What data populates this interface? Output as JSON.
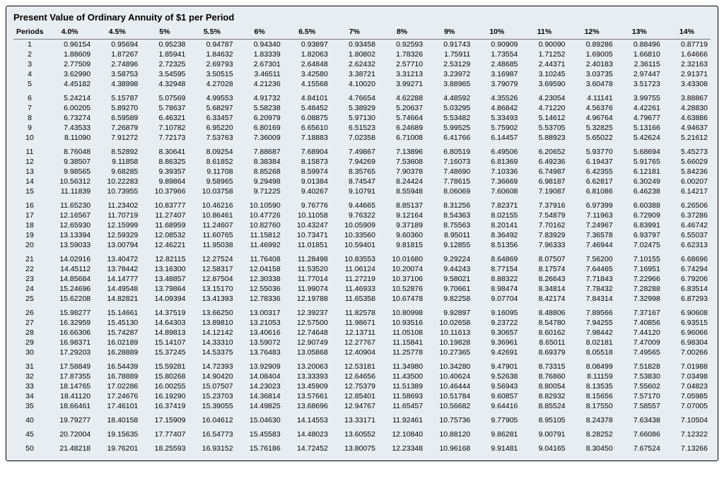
{
  "table": {
    "title": "Present Value of Ordinary Annuity of $1 per Period",
    "periods_label": "Periods",
    "rates_pct": [
      "4.0%",
      "4.5%",
      "5%",
      "5.5%",
      "6%",
      "6.5%",
      "7%",
      "8%",
      "9%",
      "10%",
      "11%",
      "12%",
      "13%",
      "14%"
    ],
    "groups": [
      {
        "rows": [
          {
            "period": 1,
            "values": [
              "0.96154",
              "0.95694",
              "0.95238",
              "0.94787",
              "0.94340",
              "0.93897",
              "0.93458",
              "0.92593",
              "0.91743",
              "0.90909",
              "0.90090",
              "0.89286",
              "0.88496",
              "0.87719"
            ]
          },
          {
            "period": 2,
            "values": [
              "1.88609",
              "1.87267",
              "1.85941",
              "1.84632",
              "1.83339",
              "1.82063",
              "1.80802",
              "1.78326",
              "1.75911",
              "1.73554",
              "1.71252",
              "1.69005",
              "1.66810",
              "1.64666"
            ]
          },
          {
            "period": 3,
            "values": [
              "2.77509",
              "2.74896",
              "2.72325",
              "2.69793",
              "2.67301",
              "2.64848",
              "2.62432",
              "2.57710",
              "2.53129",
              "2.48685",
              "2.44371",
              "2.40183",
              "2.36115",
              "2.32163"
            ]
          },
          {
            "period": 4,
            "values": [
              "3.62990",
              "3.58753",
              "3.54595",
              "3.50515",
              "3.46511",
              "3.42580",
              "3.38721",
              "3.31213",
              "3.23972",
              "3.16987",
              "3.10245",
              "3.03735",
              "2.97447",
              "2.91371"
            ]
          },
          {
            "period": 5,
            "values": [
              "4.45182",
              "4.38998",
              "4.32948",
              "4.27028",
              "4.21236",
              "4.15568",
              "4.10020",
              "3.99271",
              "3.88965",
              "3.79079",
              "3.69590",
              "3.60478",
              "3.51723",
              "3.43308"
            ]
          }
        ]
      },
      {
        "rows": [
          {
            "period": 6,
            "values": [
              "5.24214",
              "5.15787",
              "5.07569",
              "4.99553",
              "4.91732",
              "4.84101",
              "4.76654",
              "4.62288",
              "4.48592",
              "4.35526",
              "4.23054",
              "4.11141",
              "3.99755",
              "3.88867"
            ]
          },
          {
            "period": 7,
            "values": [
              "6.00205",
              "5.89270",
              "5.78637",
              "5.68297",
              "5.58238",
              "5.48452",
              "5.38929",
              "5.20637",
              "5.03295",
              "4.86842",
              "4.71220",
              "4.56376",
              "4.42261",
              "4.28830"
            ]
          },
          {
            "period": 8,
            "values": [
              "6.73274",
              "6.59589",
              "6.46321",
              "6.33457",
              "6.20979",
              "6.08875",
              "5.97130",
              "5.74664",
              "5.53482",
              "5.33493",
              "5.14612",
              "4.96764",
              "4.79677",
              "4.63886"
            ]
          },
          {
            "period": 9,
            "values": [
              "7.43533",
              "7.26879",
              "7.10782",
              "6.95220",
              "6.80169",
              "6.65610",
              "6.51523",
              "6.24689",
              "5.99525",
              "5.75902",
              "5.53705",
              "5.32825",
              "5.13166",
              "4.94637"
            ]
          },
          {
            "period": 10,
            "values": [
              "8.11090",
              "7.91272",
              "7.72173",
              "7.53763",
              "7.36009",
              "7.18883",
              "7.02358",
              "6.71008",
              "6.41766",
              "6.14457",
              "5.88923",
              "5.65022",
              "5.42624",
              "5.21612"
            ]
          }
        ]
      },
      {
        "rows": [
          {
            "period": 11,
            "values": [
              "8.76048",
              "8.52892",
              "8.30641",
              "8.09254",
              "7.88687",
              "7.68904",
              "7.49867",
              "7.13896",
              "6.80519",
              "6.49506",
              "6.20652",
              "5.93770",
              "5.68694",
              "5.45273"
            ]
          },
          {
            "period": 12,
            "values": [
              "9.38507",
              "9.11858",
              "8.86325",
              "8.61852",
              "8.38384",
              "8.15873",
              "7.94269",
              "7.53608",
              "7.16073",
              "6.81369",
              "6.49236",
              "6.19437",
              "5.91765",
              "5.66029"
            ]
          },
          {
            "period": 13,
            "values": [
              "9.98565",
              "9.68285",
              "9.39357",
              "9.11708",
              "8.85268",
              "8.59974",
              "8.35765",
              "7.90378",
              "7.48690",
              "7.10336",
              "6.74987",
              "6.42355",
              "6.12181",
              "5.84236"
            ]
          },
          {
            "period": 14,
            "values": [
              "10.56312",
              "10.22283",
              "9.89864",
              "9.58965",
              "9.29498",
              "9.01384",
              "8.74547",
              "8.24424",
              "7.78615",
              "7.36669",
              "6.98187",
              "6.62817",
              "6.30249",
              "6.00207"
            ]
          },
          {
            "period": 15,
            "values": [
              "11.11839",
              "10.73955",
              "10.37966",
              "10.03758",
              "9.71225",
              "9.40267",
              "9.10791",
              "8.55948",
              "8.06069",
              "7.60608",
              "7.19087",
              "6.81086",
              "6.46238",
              "6.14217"
            ]
          }
        ]
      },
      {
        "rows": [
          {
            "period": 16,
            "values": [
              "11.65230",
              "11.23402",
              "10.83777",
              "10.46216",
              "10.10590",
              "9.76776",
              "9.44665",
              "8.85137",
              "8.31256",
              "7.82371",
              "7.37916",
              "6.97399",
              "6.60388",
              "6.26506"
            ]
          },
          {
            "period": 17,
            "values": [
              "12.16567",
              "11.70719",
              "11.27407",
              "10.86461",
              "10.47726",
              "10.11058",
              "9.76322",
              "9.12164",
              "8.54363",
              "8.02155",
              "7.54879",
              "7.11963",
              "6.72909",
              "6.37286"
            ]
          },
          {
            "period": 18,
            "values": [
              "12.65930",
              "12.15999",
              "11.68959",
              "11.24607",
              "10.82760",
              "10.43247",
              "10.05909",
              "9.37189",
              "8.75563",
              "8.20141",
              "7.70162",
              "7.24967",
              "6.83991",
              "6.46742"
            ]
          },
          {
            "period": 19,
            "values": [
              "13.13394",
              "12.59329",
              "12.08532",
              "11.60765",
              "11.15812",
              "10.73471",
              "10.33560",
              "9.60360",
              "8.95011",
              "8.36492",
              "7.83929",
              "7.36578",
              "6.93797",
              "6.55037"
            ]
          },
          {
            "period": 20,
            "values": [
              "13.59033",
              "13.00794",
              "12.46221",
              "11.95038",
              "11.46992",
              "11.01851",
              "10.59401",
              "9.81815",
              "9.12855",
              "8.51356",
              "7.96333",
              "7.46944",
              "7.02475",
              "6.62313"
            ]
          }
        ]
      },
      {
        "rows": [
          {
            "period": 21,
            "values": [
              "14.02916",
              "13.40472",
              "12.82115",
              "12.27524",
              "11.76408",
              "11.28498",
              "10.83553",
              "10.01680",
              "9.29224",
              "8.64869",
              "8.07507",
              "7.56200",
              "7.10155",
              "6.68696"
            ]
          },
          {
            "period": 22,
            "values": [
              "14.45112",
              "13.78442",
              "13.16300",
              "12.58317",
              "12.04158",
              "11.53520",
              "11.06124",
              "10.20074",
              "9.44243",
              "8.77154",
              "8.17574",
              "7.64465",
              "7.16951",
              "6.74294"
            ]
          },
          {
            "period": 23,
            "values": [
              "14.85684",
              "14.14777",
              "13.48857",
              "12.87504",
              "12.30338",
              "11.77014",
              "11.27219",
              "10.37106",
              "9.58021",
              "8.88322",
              "8.26643",
              "7.71843",
              "7.22966",
              "6.79206"
            ]
          },
          {
            "period": 24,
            "values": [
              "15.24696",
              "14.49548",
              "13.79864",
              "13.15170",
              "12.55036",
              "11.99074",
              "11.46933",
              "10.52876",
              "9.70661",
              "8.98474",
              "8.34814",
              "7.78432",
              "7.28288",
              "6.83514"
            ]
          },
          {
            "period": 25,
            "values": [
              "15.62208",
              "14.82821",
              "14.09394",
              "13.41393",
              "12.78336",
              "12.19788",
              "11.65358",
              "10.67478",
              "9.82258",
              "9.07704",
              "8.42174",
              "7.84314",
              "7.32998",
              "6.87293"
            ]
          }
        ]
      },
      {
        "rows": [
          {
            "period": 26,
            "values": [
              "15.98277",
              "15.14661",
              "14.37519",
              "13.66250",
              "13.00317",
              "12.39237",
              "11.82578",
              "10.80998",
              "9.92897",
              "9.16095",
              "8.48806",
              "7.89566",
              "7.37167",
              "6.90608"
            ]
          },
          {
            "period": 27,
            "values": [
              "16.32959",
              "15.45130",
              "14.64303",
              "13.89810",
              "13.21053",
              "12.57500",
              "11.98671",
              "10.93516",
              "10.02658",
              "9.23722",
              "8.54780",
              "7.94255",
              "7.40856",
              "6.93515"
            ]
          },
          {
            "period": 28,
            "values": [
              "16.66306",
              "15.74287",
              "14.89813",
              "14.12142",
              "13.40616",
              "12.74648",
              "12.13711",
              "11.05108",
              "10.11613",
              "9.30657",
              "8.60162",
              "7.98442",
              "7.44120",
              "6.96066"
            ]
          },
          {
            "period": 29,
            "values": [
              "16.98371",
              "16.02189",
              "15.14107",
              "14.33310",
              "13.59072",
              "12.90749",
              "12.27767",
              "11.15841",
              "10.19828",
              "9.36961",
              "8.65011",
              "8.02181",
              "7.47009",
              "6.98304"
            ]
          },
          {
            "period": 30,
            "values": [
              "17.29203",
              "16.28889",
              "15.37245",
              "14.53375",
              "13.76483",
              "13.05868",
              "12.40904",
              "11.25778",
              "10.27365",
              "9.42691",
              "8.69379",
              "8.05518",
              "7.49565",
              "7.00266"
            ]
          }
        ]
      },
      {
        "rows": [
          {
            "period": 31,
            "values": [
              "17.58849",
              "16.54439",
              "15.59281",
              "14.72393",
              "13.92909",
              "13.20063",
              "12.53181",
              "11.34980",
              "10.34280",
              "9.47901",
              "8.73315",
              "8.08499",
              "7.51828",
              "7.01988"
            ]
          },
          {
            "period": 32,
            "values": [
              "17.87355",
              "16.78889",
              "15.80268",
              "14.90420",
              "14.08404",
              "13.33393",
              "12.64656",
              "11.43500",
              "10.40624",
              "9.52638",
              "8.76860",
              "8.11159",
              "7.53830",
              "7.03498"
            ]
          },
          {
            "period": 33,
            "values": [
              "18.14765",
              "17.02286",
              "16.00255",
              "15.07507",
              "14.23023",
              "13.45909",
              "12.75379",
              "11.51389",
              "10.46444",
              "9.56943",
              "8.80054",
              "8.13535",
              "7.55602",
              "7.04823"
            ]
          },
          {
            "period": 34,
            "values": [
              "18.41120",
              "17.24676",
              "16.19290",
              "15.23703",
              "14.36814",
              "13.57661",
              "12.85401",
              "11.58693",
              "10.51784",
              "9.60857",
              "8.82932",
              "8.15656",
              "7.57170",
              "7.05985"
            ]
          },
          {
            "period": 35,
            "values": [
              "18.66461",
              "17.46101",
              "16.37419",
              "15.39055",
              "14.49825",
              "13.68696",
              "12.94767",
              "11.65457",
              "10.56682",
              "9.64416",
              "8.85524",
              "8.17550",
              "7.58557",
              "7.07005"
            ]
          }
        ]
      },
      {
        "rows": [
          {
            "period": 40,
            "values": [
              "19.79277",
              "18.40158",
              "17.15909",
              "16.04612",
              "15.04630",
              "14.14553",
              "13.33171",
              "11.92461",
              "10.75736",
              "9.77905",
              "8.95105",
              "8.24378",
              "7.63438",
              "7.10504"
            ]
          }
        ]
      },
      {
        "rows": [
          {
            "period": 45,
            "values": [
              "20.72004",
              "19.15635",
              "17.77407",
              "16.54773",
              "15.45583",
              "14.48023",
              "13.60552",
              "12.10840",
              "10.88120",
              "9.86281",
              "9.00791",
              "8.28252",
              "7.66086",
              "7.12322"
            ]
          }
        ]
      },
      {
        "rows": [
          {
            "period": 50,
            "values": [
              "21.48218",
              "19.76201",
              "18.25593",
              "16.93152",
              "15.76186",
              "14.72452",
              "13.80075",
              "12.23348",
              "10.96168",
              "9.91481",
              "9.04165",
              "8.30450",
              "7.67524",
              "7.13266"
            ]
          }
        ]
      }
    ],
    "style": {
      "background_color": "#e8edf2",
      "border_color": "#000000",
      "header_underline_color": "#777777",
      "font_color": "#000000",
      "title_fontsize_pt": 13,
      "body_fontsize_pt": 10.5,
      "font_family": "Arial, Helvetica, sans-serif"
    }
  }
}
